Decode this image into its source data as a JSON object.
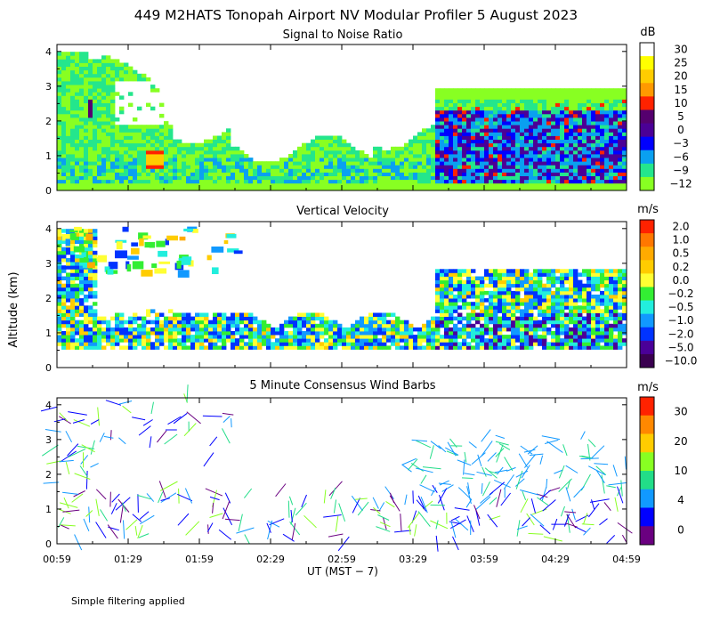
{
  "figure": {
    "title": "449 M2HATS Tonopah Airport NV Modular Profiler  5 August 2023",
    "ylabel": "Altitude (km)",
    "xlabel": "UT  (MST − 7)",
    "footnote": "Simple filtering applied"
  },
  "chart_data": [
    {
      "type": "heatmap",
      "title": "Signal to Noise Ratio",
      "xlabel": "UT  (MST − 7)",
      "ylabel": "Altitude (km)",
      "x_ticks": [
        "00:59",
        "01:29",
        "01:59",
        "02:29",
        "02:59",
        "03:29",
        "03:59",
        "04:29",
        "04:59"
      ],
      "y_ticks": [
        "0",
        "1",
        "2",
        "3",
        "4"
      ],
      "ylim": [
        0,
        4.2
      ],
      "colorbar_unit": "dB",
      "colorbar_labels": [
        "30",
        "25",
        "20",
        "15",
        "10",
        "5",
        "0",
        "−3",
        "−6",
        "−9",
        "−12"
      ],
      "colorbar_colors": [
        "#ffffff",
        "#ffff00",
        "#ffcc00",
        "#ff9900",
        "#ff2200",
        "#55006e",
        "#4b0096",
        "#0000ff",
        "#0aa0f0",
        "#24e68c",
        "#88ff22"
      ]
    },
    {
      "type": "heatmap",
      "title": "Vertical Velocity",
      "xlabel": "UT  (MST − 7)",
      "ylabel": "Altitude (km)",
      "x_ticks": [
        "00:59",
        "01:29",
        "01:59",
        "02:29",
        "02:59",
        "03:29",
        "03:59",
        "04:29",
        "04:59"
      ],
      "y_ticks": [
        "0",
        "1",
        "2",
        "3",
        "4"
      ],
      "ylim": [
        0,
        4.2
      ],
      "colorbar_unit": "m/s",
      "colorbar_labels": [
        "2.0",
        "1.0",
        "0.5",
        "0.2",
        "0.0",
        "−0.2",
        "−0.5",
        "−1.0",
        "−2.0",
        "−5.0",
        "−10.0"
      ],
      "colorbar_colors": [
        "#ff2200",
        "#ff7700",
        "#ffaa00",
        "#ffcc00",
        "#ffff33",
        "#33ee33",
        "#22eedd",
        "#1199ff",
        "#0033ff",
        "#4a0098",
        "#3a0050"
      ]
    },
    {
      "type": "scatter",
      "title": "5 Minute Consensus Wind Barbs",
      "xlabel": "UT  (MST − 7)",
      "ylabel": "Altitude (km)",
      "x_ticks": [
        "00:59",
        "01:29",
        "01:59",
        "02:29",
        "02:59",
        "03:29",
        "03:59",
        "04:29",
        "04:59"
      ],
      "y_ticks": [
        "0",
        "1",
        "2",
        "3",
        "4"
      ],
      "ylim": [
        0,
        4.2
      ],
      "colorbar_unit": "m/s",
      "colorbar_labels": [
        "30",
        "20",
        "10",
        "4",
        "0"
      ],
      "colorbar_colors": [
        "#ff2200",
        "#ff8800",
        "#ffcc00",
        "#88ff22",
        "#22dd88",
        "#1199ff",
        "#0000ff",
        "#6a0080"
      ]
    }
  ]
}
